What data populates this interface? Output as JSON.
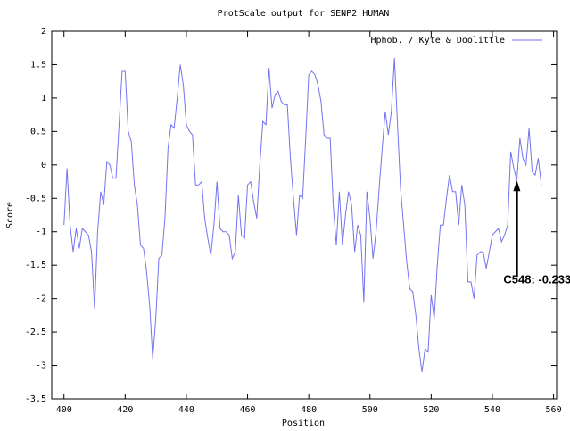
{
  "chart_data": {
    "type": "line",
    "title": "ProtScale output for SENP2 HUMAN",
    "x_label": "Position",
    "y_label": "Score",
    "x": [
      400,
      401,
      402,
      403,
      404,
      405,
      406,
      407,
      408,
      409,
      410,
      411,
      412,
      413,
      414,
      415,
      416,
      417,
      418,
      419,
      420,
      421,
      422,
      423,
      424,
      425,
      426,
      427,
      428,
      429,
      430,
      431,
      432,
      433,
      434,
      435,
      436,
      437,
      438,
      439,
      440,
      441,
      442,
      443,
      444,
      445,
      446,
      447,
      448,
      449,
      450,
      451,
      452,
      453,
      454,
      455,
      456,
      457,
      458,
      459,
      460,
      461,
      462,
      463,
      464,
      465,
      466,
      467,
      468,
      469,
      470,
      471,
      472,
      473,
      474,
      475,
      476,
      477,
      478,
      479,
      480,
      481,
      482,
      483,
      484,
      485,
      486,
      487,
      488,
      489,
      490,
      491,
      492,
      493,
      494,
      495,
      496,
      497,
      498,
      499,
      500,
      501,
      502,
      503,
      504,
      505,
      506,
      507,
      508,
      509,
      510,
      511,
      512,
      513,
      514,
      515,
      516,
      517,
      518,
      519,
      520,
      521,
      522,
      523,
      524,
      525,
      526,
      527,
      528,
      529,
      530,
      531,
      532,
      533,
      534,
      535,
      536,
      537,
      538,
      539,
      540,
      541,
      542,
      543,
      544,
      545,
      546,
      547,
      548,
      549,
      550,
      551,
      552,
      553,
      554,
      555,
      556
    ],
    "series": [
      {
        "name": "Hphob. / Kyte & Doolittle",
        "color": "#7373f0",
        "values": [
          -0.9,
          -0.05,
          -0.9,
          -1.3,
          -0.95,
          -1.25,
          -0.95,
          -1.0,
          -1.05,
          -1.3,
          -2.15,
          -1.0,
          -0.4,
          -0.6,
          0.05,
          0.0,
          -0.2,
          -0.2,
          0.6,
          1.4,
          1.4,
          0.5,
          0.35,
          -0.3,
          -0.6,
          -1.2,
          -1.25,
          -1.6,
          -2.1,
          -2.9,
          -2.3,
          -1.4,
          -1.35,
          -0.8,
          0.25,
          0.6,
          0.55,
          1.0,
          1.5,
          1.2,
          0.6,
          0.5,
          0.45,
          -0.3,
          -0.3,
          -0.25,
          -0.8,
          -1.1,
          -1.35,
          -0.9,
          -0.25,
          -0.95,
          -1.0,
          -1.0,
          -1.05,
          -1.4,
          -1.3,
          -0.45,
          -1.05,
          -1.1,
          -0.3,
          -0.25,
          -0.55,
          -0.8,
          0.0,
          0.65,
          0.6,
          1.45,
          0.85,
          1.05,
          1.1,
          0.95,
          0.9,
          0.9,
          0.1,
          -0.5,
          -1.05,
          -0.45,
          -0.5,
          0.4,
          1.35,
          1.4,
          1.35,
          1.2,
          0.95,
          0.45,
          0.4,
          0.4,
          -0.6,
          -1.2,
          -0.4,
          -1.2,
          -0.75,
          -0.4,
          -0.6,
          -1.3,
          -0.9,
          -1.05,
          -2.05,
          -0.4,
          -0.8,
          -1.4,
          -1.0,
          -0.35,
          0.25,
          0.8,
          0.45,
          0.8,
          1.6,
          0.6,
          -0.35,
          -0.9,
          -1.45,
          -1.85,
          -1.9,
          -2.25,
          -2.75,
          -3.1,
          -2.75,
          -2.8,
          -1.95,
          -2.3,
          -1.5,
          -0.9,
          -0.9,
          -0.5,
          -0.15,
          -0.4,
          -0.4,
          -0.9,
          -0.3,
          -0.6,
          -1.75,
          -1.75,
          -2.0,
          -1.35,
          -1.3,
          -1.3,
          -1.55,
          -1.3,
          -1.05,
          -1.0,
          -0.95,
          -1.15,
          -1.05,
          -0.9,
          0.2,
          -0.05,
          -0.233,
          0.4,
          0.1,
          0.0,
          0.55,
          -0.1,
          -0.15,
          0.1,
          -0.3
        ]
      }
    ],
    "xlim": [
      396,
      561
    ],
    "ylim": [
      -3.5,
      2
    ],
    "xticks": [
      400,
      420,
      440,
      460,
      480,
      500,
      520,
      540,
      560
    ],
    "yticks": [
      2,
      1.5,
      1,
      0.5,
      0,
      -0.5,
      -1,
      -1.5,
      -2,
      -2.5,
      -3,
      -3.5
    ],
    "legend": "top-right",
    "annotation": {
      "text": "C548: -0.233",
      "x": 548,
      "y": -0.233
    }
  }
}
